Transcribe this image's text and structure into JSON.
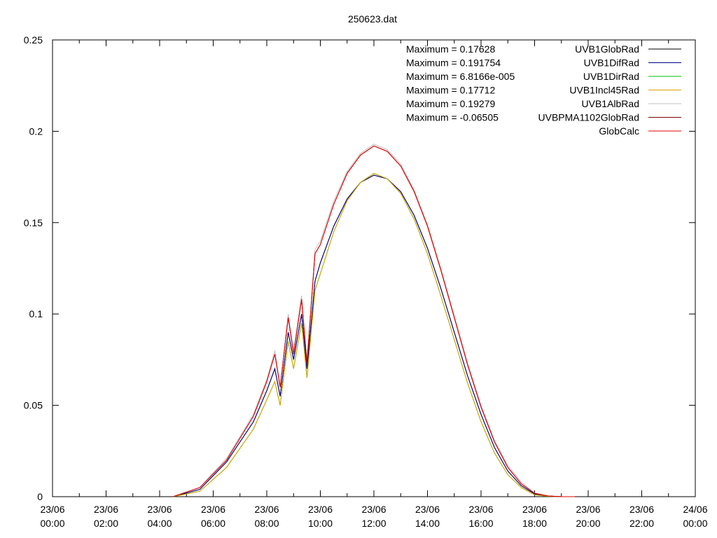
{
  "chart_data": {
    "type": "line",
    "title": "250623.dat",
    "xlabel": "",
    "ylabel": "",
    "xlim_hours": [
      0,
      24
    ],
    "ylim": [
      0,
      0.25
    ],
    "grid": false,
    "legend_position": "top-right",
    "x_ticks": [
      {
        "date": "23/06",
        "time": "00:00"
      },
      {
        "date": "23/06",
        "time": "02:00"
      },
      {
        "date": "23/06",
        "time": "04:00"
      },
      {
        "date": "23/06",
        "time": "06:00"
      },
      {
        "date": "23/06",
        "time": "08:00"
      },
      {
        "date": "23/06",
        "time": "10:00"
      },
      {
        "date": "23/06",
        "time": "12:00"
      },
      {
        "date": "23/06",
        "time": "14:00"
      },
      {
        "date": "23/06",
        "time": "16:00"
      },
      {
        "date": "23/06",
        "time": "18:00"
      },
      {
        "date": "23/06",
        "time": "20:00"
      },
      {
        "date": "23/06",
        "time": "22:00"
      },
      {
        "date": "24/06",
        "time": "00:00"
      }
    ],
    "y_ticks": [
      "0",
      "0.05",
      "0.1",
      "0.15",
      "0.2",
      "0.25"
    ],
    "annotations": [
      "Maximum = 0.17628",
      "Maximum = 0.191754",
      "Maximum = 6.8166e-005",
      "Maximum = 0.17712",
      "Maximum = 0.19279",
      "Maximum = -0.06505"
    ],
    "series": [
      {
        "name": "UVB1GlobRad",
        "color": "#000000",
        "x": [
          4.5,
          5.5,
          6.5,
          7.5,
          8.0,
          8.3,
          8.5,
          8.8,
          9.0,
          9.3,
          9.5,
          9.8,
          10.0,
          10.5,
          11.0,
          11.5,
          12.0,
          12.5,
          13.0,
          13.5,
          14.0,
          14.5,
          15.0,
          15.5,
          16.0,
          16.5,
          17.0,
          17.5,
          18.0,
          18.5,
          19.0,
          19.5
        ],
        "y": [
          0,
          0.004,
          0.019,
          0.041,
          0.058,
          0.07,
          0.055,
          0.09,
          0.075,
          0.1,
          0.07,
          0.118,
          0.128,
          0.148,
          0.163,
          0.172,
          0.176,
          0.174,
          0.167,
          0.154,
          0.136,
          0.114,
          0.09,
          0.066,
          0.045,
          0.027,
          0.014,
          0.006,
          0.0015,
          0.0003,
          0,
          0
        ]
      },
      {
        "name": "UVB1DifRad",
        "color": "#000080",
        "x": [
          4.5,
          5.5,
          6.5,
          7.5,
          8.0,
          8.3,
          8.5,
          8.8,
          9.0,
          9.3,
          9.5,
          9.8,
          10.0,
          10.5,
          11.0,
          11.5,
          12.0,
          12.5,
          13.0,
          13.5,
          14.0,
          14.5,
          15.0,
          15.5,
          16.0,
          16.5,
          17.0,
          17.5,
          18.0,
          18.5,
          19.0,
          19.5
        ],
        "y": [
          0,
          0.004,
          0.019,
          0.041,
          0.058,
          0.07,
          0.055,
          0.09,
          0.075,
          0.1,
          0.07,
          0.118,
          0.128,
          0.148,
          0.163,
          0.172,
          0.176,
          0.174,
          0.167,
          0.154,
          0.136,
          0.114,
          0.09,
          0.066,
          0.045,
          0.027,
          0.014,
          0.006,
          0.0015,
          0.0003,
          0,
          0
        ]
      },
      {
        "name": "UVB1DirRad",
        "color": "#00c000",
        "x": [
          4.5,
          5.5,
          6.5,
          7.5,
          8.0,
          8.3,
          8.5,
          8.8,
          9.0,
          9.3,
          9.5,
          9.8,
          10.0,
          10.5,
          11.0,
          11.5,
          12.0,
          12.5,
          13.0,
          13.5,
          14.0,
          14.5,
          15.0,
          15.5,
          16.0,
          16.5,
          17.0,
          17.5,
          18.0,
          18.5,
          19.0,
          19.5
        ],
        "y": [
          0,
          0.003,
          0.016,
          0.037,
          0.053,
          0.063,
          0.05,
          0.085,
          0.07,
          0.095,
          0.065,
          0.113,
          0.122,
          0.145,
          0.162,
          0.172,
          0.177,
          0.174,
          0.166,
          0.152,
          0.133,
          0.11,
          0.086,
          0.062,
          0.041,
          0.024,
          0.012,
          0.005,
          0.001,
          0.0002,
          0,
          0
        ]
      },
      {
        "name": "UVB1Incl45Rad",
        "color": "#e0a000",
        "x": [
          4.5,
          5.5,
          6.5,
          7.5,
          8.0,
          8.3,
          8.5,
          8.8,
          9.0,
          9.3,
          9.5,
          9.8,
          10.0,
          10.5,
          11.0,
          11.5,
          12.0,
          12.5,
          13.0,
          13.5,
          14.0,
          14.5,
          15.0,
          15.5,
          16.0,
          16.5,
          17.0,
          17.5,
          18.0,
          18.5,
          19.0,
          19.5
        ],
        "y": [
          0,
          0.003,
          0.016,
          0.037,
          0.053,
          0.063,
          0.05,
          0.085,
          0.07,
          0.095,
          0.065,
          0.113,
          0.122,
          0.145,
          0.162,
          0.172,
          0.177,
          0.174,
          0.166,
          0.152,
          0.133,
          0.11,
          0.086,
          0.062,
          0.041,
          0.024,
          0.012,
          0.005,
          0.001,
          0.0002,
          0,
          0
        ]
      },
      {
        "name": "UVB1AlbRad",
        "color": "#c0c0c0",
        "x": [
          4.5,
          5.5,
          6.5,
          7.5,
          8.0,
          8.3,
          8.5,
          8.8,
          9.0,
          9.3,
          9.5,
          9.8,
          10.0,
          10.5,
          11.0,
          11.5,
          12.0,
          12.5,
          13.0,
          13.5,
          14.0,
          14.5,
          15.0,
          15.5,
          16.0,
          16.5,
          17.0,
          17.5,
          18.0,
          18.5,
          19.0,
          19.5
        ],
        "y": [
          0,
          0.005,
          0.021,
          0.045,
          0.064,
          0.08,
          0.06,
          0.1,
          0.08,
          0.11,
          0.075,
          0.135,
          0.14,
          0.162,
          0.178,
          0.188,
          0.193,
          0.19,
          0.182,
          0.168,
          0.149,
          0.125,
          0.099,
          0.073,
          0.05,
          0.031,
          0.017,
          0.008,
          0.002,
          0.0005,
          0,
          0
        ]
      },
      {
        "name": "UVBPMA1102GlobRad",
        "color": "#800000",
        "x": [
          4.5,
          5.5,
          6.5,
          7.5,
          8.0,
          8.3,
          8.5,
          8.8,
          9.0,
          9.3,
          9.5,
          9.8,
          10.0,
          10.5,
          11.0,
          11.5,
          12.0,
          12.5,
          13.0,
          13.5,
          14.0,
          14.5,
          15.0,
          15.5,
          16.0,
          16.5,
          17.0,
          17.5,
          18.0,
          18.5,
          19.0,
          19.5
        ],
        "y": [
          0,
          0.005,
          0.02,
          0.044,
          0.063,
          0.078,
          0.06,
          0.098,
          0.078,
          0.108,
          0.073,
          0.133,
          0.138,
          0.16,
          0.177,
          0.187,
          0.192,
          0.189,
          0.181,
          0.167,
          0.148,
          0.124,
          0.098,
          0.072,
          0.049,
          0.03,
          0.016,
          0.007,
          0.0018,
          0.0004,
          0,
          0
        ]
      },
      {
        "name": "GlobCalc",
        "color": "#e00000",
        "x": [
          4.5,
          5.5,
          6.5,
          7.5,
          8.0,
          8.3,
          8.5,
          8.8,
          9.0,
          9.3,
          9.5,
          9.8,
          10.0,
          10.5,
          11.0,
          11.5,
          12.0,
          12.5,
          13.0,
          13.5,
          14.0,
          14.5,
          15.0,
          15.5,
          16.0,
          16.5,
          17.0,
          17.5,
          18.0,
          18.5,
          19.0,
          19.5
        ],
        "y": [
          0,
          0.005,
          0.02,
          0.044,
          0.063,
          0.078,
          0.06,
          0.098,
          0.078,
          0.108,
          0.073,
          0.133,
          0.138,
          0.16,
          0.177,
          0.187,
          0.192,
          0.189,
          0.181,
          0.167,
          0.148,
          0.124,
          0.098,
          0.072,
          0.049,
          0.03,
          0.016,
          0.007,
          0.0018,
          0.0004,
          0,
          0
        ]
      }
    ]
  }
}
